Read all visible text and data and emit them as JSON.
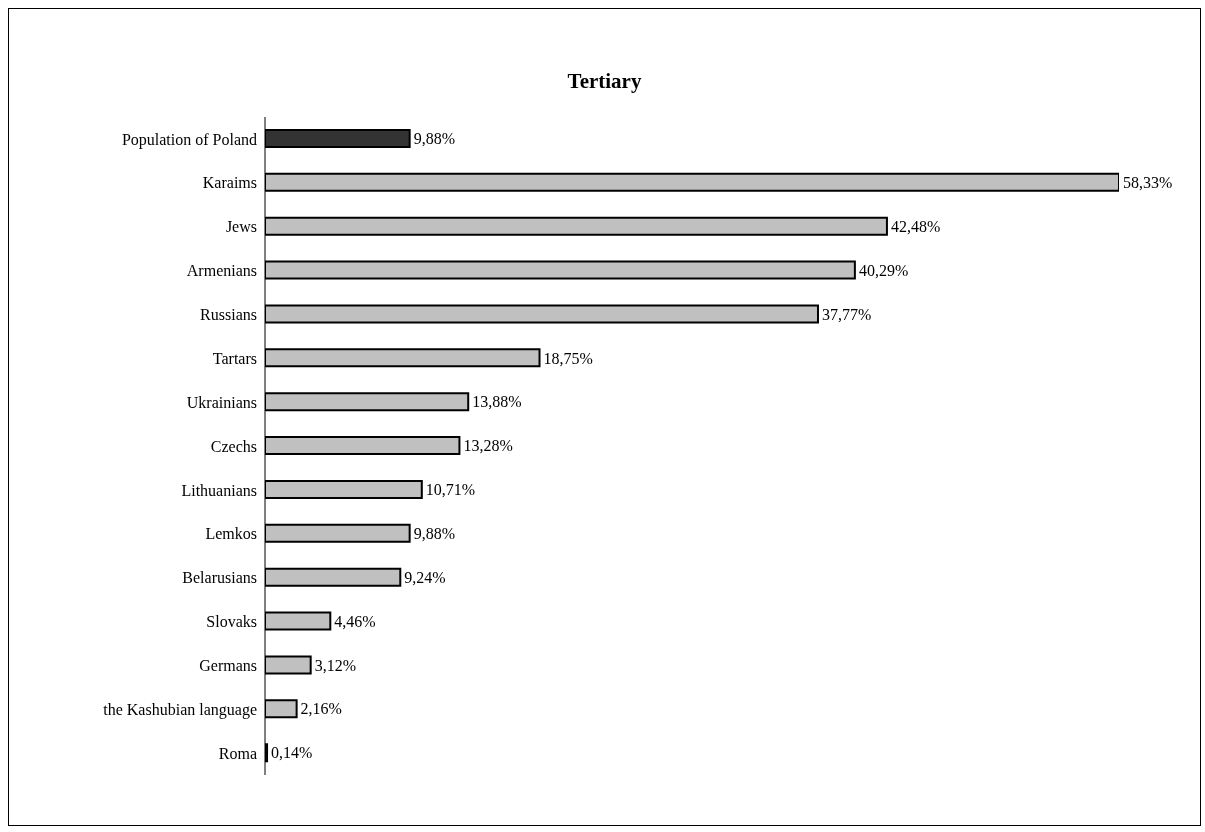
{
  "chart_data": {
    "type": "bar",
    "title": "Tertiary",
    "orientation": "horizontal",
    "categories": [
      "Population of Poland",
      "Karaims",
      "Jews",
      "Armenians",
      "Russians",
      "Tartars",
      "Ukrainians",
      "Czechs",
      "Lithuanians",
      "Lemkos",
      "Belarusians",
      "Slovaks",
      "Germans",
      "the Kashubian language",
      "Roma"
    ],
    "values": [
      9.88,
      58.33,
      42.48,
      40.29,
      37.77,
      18.75,
      13.88,
      13.28,
      10.71,
      9.88,
      9.24,
      4.46,
      3.12,
      2.16,
      0.14
    ],
    "colors": [
      "#333333",
      "#c0c0c0",
      "#c0c0c0",
      "#c0c0c0",
      "#c0c0c0",
      "#c0c0c0",
      "#c0c0c0",
      "#c0c0c0",
      "#c0c0c0",
      "#c0c0c0",
      "#c0c0c0",
      "#c0c0c0",
      "#c0c0c0",
      "#c0c0c0",
      "#c0c0c0"
    ],
    "value_labels": [
      "9,88%",
      "58,33%",
      "42,48%",
      "40,29%",
      "37,77%",
      "18,75%",
      "13,88%",
      "13,28%",
      "10,71%",
      "9,88%",
      "9,24%",
      "4,46%",
      "3,12%",
      "2,16%",
      "0,14%"
    ],
    "grid": false,
    "legend": false
  }
}
